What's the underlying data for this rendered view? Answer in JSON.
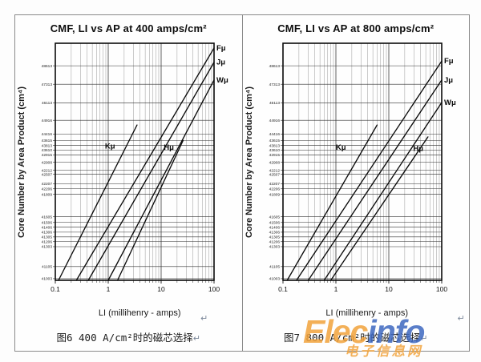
{
  "page": {
    "background": "#fdfdfd",
    "frame_border_color": "#8a8a8a",
    "return_mark": "↵",
    "watermark": {
      "part1": "Elec",
      "part1_color": "#F2A33C",
      "part2": "info",
      "part2_color": "#3E68C0",
      "subtitle": "电子信息网",
      "subtitle_color": "#F2A33C"
    }
  },
  "chart_data": [
    {
      "type": "line",
      "title": "CMF, LI vs AP at 400 amps/cm²",
      "xlabel": "LI (millihenry - amps)",
      "ylabel": "Core Number by Area Product (cm⁴)",
      "caption": "图6 400 A/cm²时的磁芯选择",
      "x_scale": "log",
      "x_range": [
        0.1,
        100
      ],
      "x_ticks": [
        "0.1",
        "1",
        "10",
        "100"
      ],
      "grid": "log minor vertical grid; one horizontal gridline per core-number tick",
      "legend_position": "line-end labels",
      "y_axis_note": "y ticks are ferrite core numbers ordered by area product; pos = fraction of plot height measured from top",
      "y_ticks": [
        {
          "label": "48613",
          "pos": 0.095
        },
        {
          "label": "47313",
          "pos": 0.173
        },
        {
          "label": "46113",
          "pos": 0.251
        },
        {
          "label": "44916",
          "pos": 0.325
        },
        {
          "label": "44416",
          "pos": 0.383
        },
        {
          "label": "43615",
          "pos": 0.41
        },
        {
          "label": "43813",
          "pos": 0.431
        },
        {
          "label": "43610",
          "pos": 0.451
        },
        {
          "label": "42915",
          "pos": 0.471
        },
        {
          "label": "42908",
          "pos": 0.502
        },
        {
          "label": "42212",
          "pos": 0.536
        },
        {
          "label": "42507",
          "pos": 0.553
        },
        {
          "label": "42207",
          "pos": 0.593
        },
        {
          "label": "42206",
          "pos": 0.614
        },
        {
          "label": "41809",
          "pos": 0.637
        },
        {
          "label": "41605",
          "pos": 0.732
        },
        {
          "label": "41506",
          "pos": 0.756
        },
        {
          "label": "41406",
          "pos": 0.776
        },
        {
          "label": "41306",
          "pos": 0.797
        },
        {
          "label": "41305",
          "pos": 0.817
        },
        {
          "label": "41206",
          "pos": 0.837
        },
        {
          "label": "41303",
          "pos": 0.858
        },
        {
          "label": "41105",
          "pos": 0.942
        },
        {
          "label": "41003",
          "pos": 0.993
        }
      ],
      "series_note": "points = [LI in mH-A, fraction of plot height from top]; straight lines on log-log grid, values approximate",
      "series": [
        {
          "name": "Kμ",
          "points": [
            [
              0.115,
              1.0
            ],
            [
              3.5,
              0.345
            ]
          ],
          "label_pos": {
            "x": 1.35,
            "yfrac": 0.445
          },
          "label_anchor": "end"
        },
        {
          "name": "Fμ",
          "points": [
            [
              0.25,
              1.0
            ],
            [
              100,
              0.02
            ]
          ],
          "label_anchor": "right-edge"
        },
        {
          "name": "Jμ",
          "points": [
            [
              0.42,
              1.0
            ],
            [
              100,
              0.08
            ]
          ],
          "label_anchor": "right-edge"
        },
        {
          "name": "Wμ",
          "points": [
            [
              1.0,
              1.0
            ],
            [
              100,
              0.155
            ]
          ],
          "label_anchor": "right-edge"
        },
        {
          "name": "Hμ",
          "points": [
            [
              1.5,
              1.0
            ],
            [
              26,
              0.41
            ]
          ],
          "label_pos": {
            "x": 14,
            "yfrac": 0.45
          },
          "label_anchor": "middle"
        }
      ]
    },
    {
      "type": "line",
      "title": "CMF, LI vs AP at 800 amps/cm²",
      "xlabel": "LI (millihenry - amps)",
      "ylabel": "Core Number by Area Product (cm⁴)",
      "caption": "图7 800 A/cm²时的磁芯选择",
      "x_scale": "log",
      "x_range": [
        0.1,
        100
      ],
      "x_ticks": [
        "0.1",
        "1",
        "10",
        "100"
      ],
      "grid": "log minor vertical grid; one horizontal gridline per core-number tick",
      "legend_position": "line-end labels",
      "y_axis_note": "y ticks are ferrite core numbers ordered by area product; pos = fraction of plot height measured from top",
      "y_ticks": [
        {
          "label": "48613",
          "pos": 0.095
        },
        {
          "label": "47313",
          "pos": 0.173
        },
        {
          "label": "46113",
          "pos": 0.251
        },
        {
          "label": "44916",
          "pos": 0.325
        },
        {
          "label": "44416",
          "pos": 0.383
        },
        {
          "label": "43615",
          "pos": 0.41
        },
        {
          "label": "43813",
          "pos": 0.431
        },
        {
          "label": "43610",
          "pos": 0.451
        },
        {
          "label": "42915",
          "pos": 0.471
        },
        {
          "label": "42908",
          "pos": 0.502
        },
        {
          "label": "42212",
          "pos": 0.536
        },
        {
          "label": "42507",
          "pos": 0.553
        },
        {
          "label": "42207",
          "pos": 0.593
        },
        {
          "label": "42206",
          "pos": 0.614
        },
        {
          "label": "41809",
          "pos": 0.637
        },
        {
          "label": "41605",
          "pos": 0.732
        },
        {
          "label": "41506",
          "pos": 0.756
        },
        {
          "label": "41406",
          "pos": 0.776
        },
        {
          "label": "41306",
          "pos": 0.797
        },
        {
          "label": "41305",
          "pos": 0.817
        },
        {
          "label": "41206",
          "pos": 0.837
        },
        {
          "label": "41303",
          "pos": 0.858
        },
        {
          "label": "41105",
          "pos": 0.942
        },
        {
          "label": "41003",
          "pos": 0.993
        }
      ],
      "series_note": "points = [LI in mH-A, fraction of plot height from top]; straight lines on log-log grid, values approximate",
      "series": [
        {
          "name": "Kμ",
          "points": [
            [
              0.12,
              1.0
            ],
            [
              6.0,
              0.345
            ]
          ],
          "label_pos": {
            "x": 1.55,
            "yfrac": 0.45
          },
          "label_anchor": "end"
        },
        {
          "name": "Fμ",
          "points": [
            [
              0.18,
              1.0
            ],
            [
              100,
              0.075
            ]
          ],
          "label_anchor": "right-edge"
        },
        {
          "name": "Jμ",
          "points": [
            [
              0.3,
              1.0
            ],
            [
              100,
              0.155
            ]
          ],
          "label_anchor": "right-edge"
        },
        {
          "name": "Wμ",
          "points": [
            [
              0.6,
              1.0
            ],
            [
              100,
              0.25
            ]
          ],
          "label_anchor": "right-edge"
        },
        {
          "name": "Hμ",
          "points": [
            [
              0.8,
              1.0
            ],
            [
              55,
              0.395
            ]
          ],
          "label_pos": {
            "x": 36,
            "yfrac": 0.455
          },
          "label_anchor": "middle"
        }
      ]
    }
  ]
}
